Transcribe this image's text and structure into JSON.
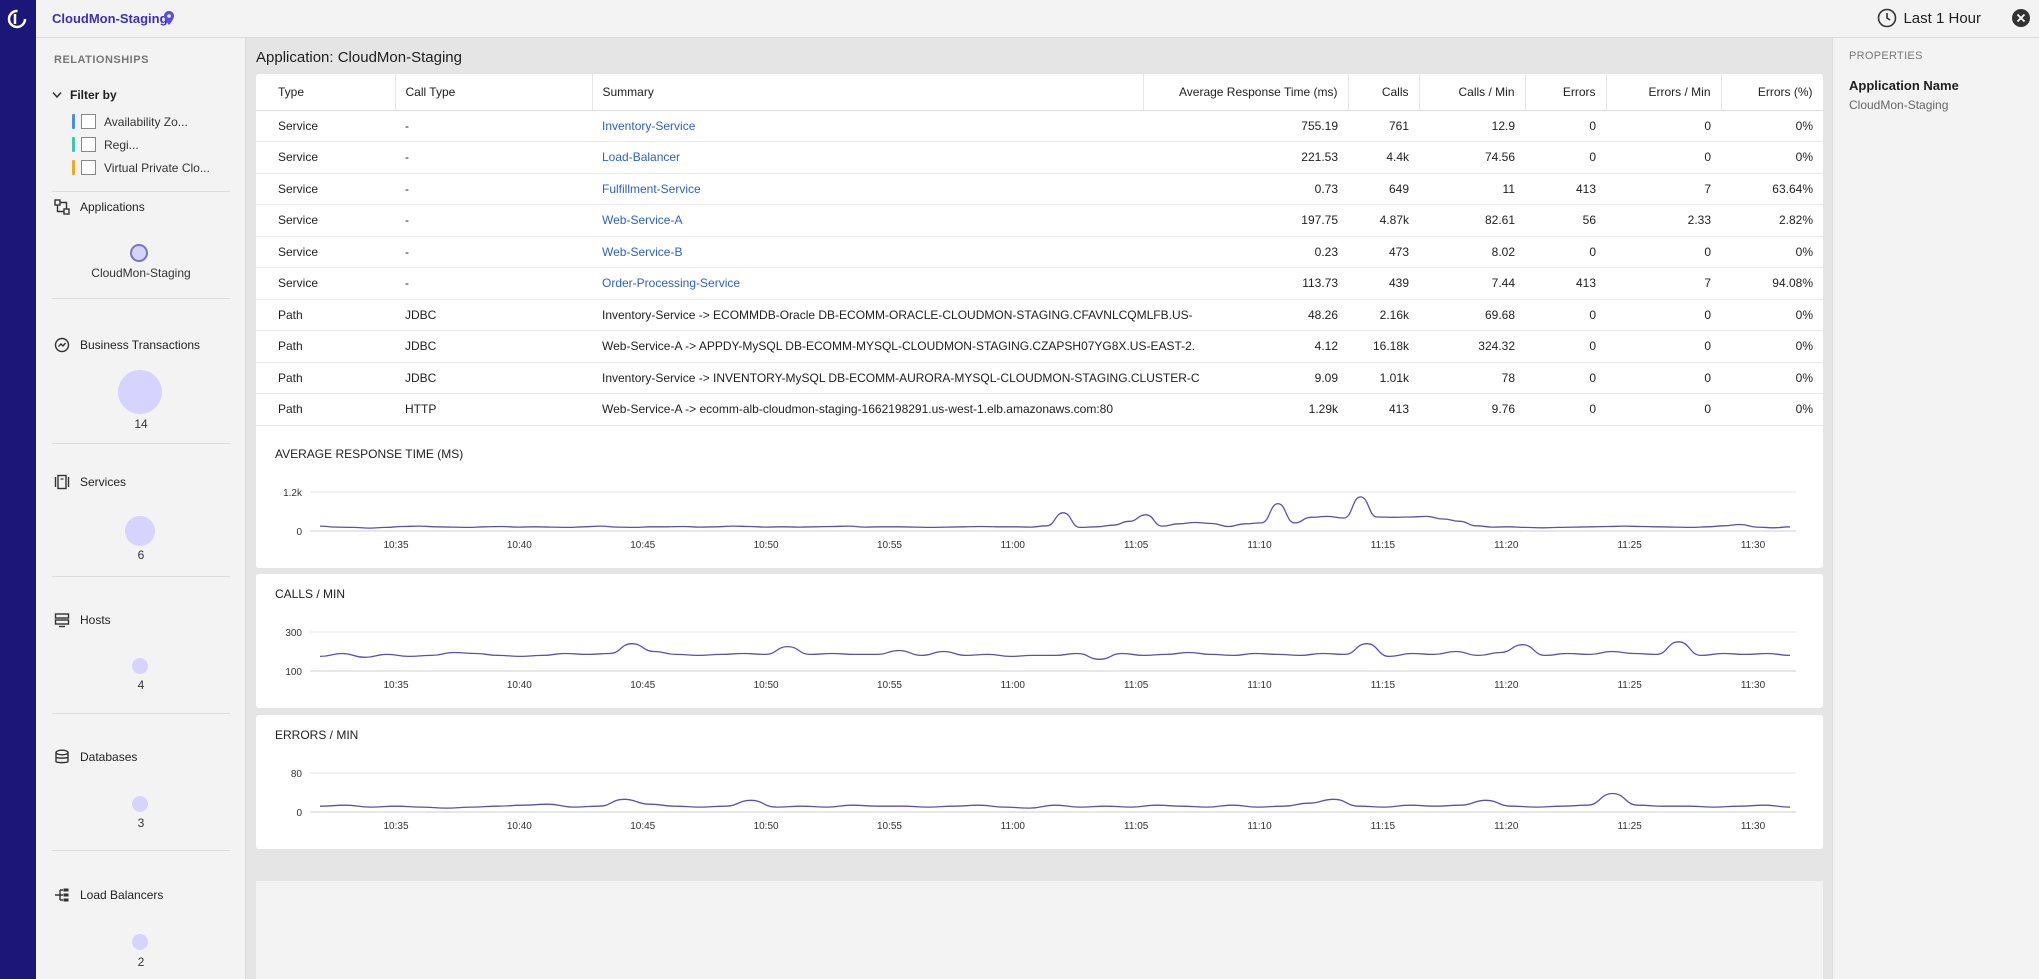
{
  "topbar": {
    "app_name": "CloudMon-Staging",
    "time_range": "Last 1 Hour"
  },
  "sidebar": {
    "title": "RELATIONSHIPS",
    "filter_by": "Filter by",
    "filters": [
      {
        "label": "Availability Zo...",
        "color": "#4a90e2"
      },
      {
        "label": "Regi...",
        "color": "#3cc9a8"
      },
      {
        "label": "Virtual Private Clo...",
        "color": "#f5a623"
      }
    ],
    "sections": [
      {
        "label": "Applications",
        "icon": "applications-icon",
        "bubble_label": "CloudMon-Staging"
      },
      {
        "label": "Business Transactions",
        "icon": "business-transactions-icon",
        "bubble_label": "14"
      },
      {
        "label": "Services",
        "icon": "services-icon",
        "bubble_label": "6"
      },
      {
        "label": "Hosts",
        "icon": "hosts-icon",
        "bubble_label": "4"
      },
      {
        "label": "Databases",
        "icon": "databases-icon",
        "bubble_label": "3"
      },
      {
        "label": "Load Balancers",
        "icon": "load-balancers-icon",
        "bubble_label": "2"
      }
    ]
  },
  "main": {
    "title": "Application: CloudMon-Staging",
    "table": {
      "headers": [
        "Type",
        "Call Type",
        "Summary",
        "Average Response Time (ms)",
        "Calls",
        "Calls / Min",
        "Errors",
        "Errors / Min",
        "Errors (%)"
      ],
      "rows": [
        [
          "Service",
          "-",
          "Inventory-Service",
          "755.19",
          "761",
          "12.9",
          "0",
          "0",
          "0%"
        ],
        [
          "Service",
          "-",
          "Load-Balancer",
          "221.53",
          "4.4k",
          "74.56",
          "0",
          "0",
          "0%"
        ],
        [
          "Service",
          "-",
          "Fulfillment-Service",
          "0.73",
          "649",
          "11",
          "413",
          "7",
          "63.64%"
        ],
        [
          "Service",
          "-",
          "Web-Service-A",
          "197.75",
          "4.87k",
          "82.61",
          "56",
          "2.33",
          "2.82%"
        ],
        [
          "Service",
          "-",
          "Web-Service-B",
          "0.23",
          "473",
          "8.02",
          "0",
          "0",
          "0%"
        ],
        [
          "Service",
          "-",
          "Order-Processing-Service",
          "113.73",
          "439",
          "7.44",
          "413",
          "7",
          "94.08%"
        ],
        [
          "Path",
          "JDBC",
          "Inventory-Service -> ECOMMDB-Oracle DB-ECOMM-ORACLE-CLOUDMON-STAGING.CFAVNLCQMLFB.US-",
          "48.26",
          "2.16k",
          "69.68",
          "0",
          "0",
          "0%"
        ],
        [
          "Path",
          "JDBC",
          "Web-Service-A -> APPDY-MySQL DB-ECOMM-MYSQL-CLOUDMON-STAGING.CZAPSH07YG8X.US-EAST-2.",
          "4.12",
          "16.18k",
          "324.32",
          "0",
          "0",
          "0%"
        ],
        [
          "Path",
          "JDBC",
          "Inventory-Service -> INVENTORY-MySQL DB-ECOMM-AURORA-MYSQL-CLOUDMON-STAGING.CLUSTER-C",
          "9.09",
          "1.01k",
          "78",
          "0",
          "0",
          "0%"
        ],
        [
          "Path",
          "HTTP",
          "Web-Service-A -> ecomm-alb-cloudmon-staging-1662198291.us-west-1.elb.amazonaws.com:80",
          "1.29k",
          "413",
          "9.76",
          "0",
          "0",
          "0%"
        ]
      ]
    }
  },
  "properties": {
    "title": "PROPERTIES",
    "label": "Application Name",
    "value": "CloudMon-Staging"
  },
  "chart_data": [
    {
      "type": "line",
      "title": "AVERAGE RESPONSE TIME (MS)",
      "yticks": [
        "1.2k",
        "0"
      ],
      "ylim": [
        0,
        1200
      ],
      "xticks": [
        "10:35",
        "10:40",
        "10:45",
        "10:50",
        "10:55",
        "11:00",
        "11:05",
        "11:10",
        "11:15",
        "11:20",
        "11:25",
        "11:30"
      ],
      "values": [
        150,
        120,
        110,
        90,
        110,
        140,
        150,
        130,
        120,
        110,
        130,
        140,
        120,
        130,
        120,
        110,
        130,
        150,
        120,
        110,
        130,
        130,
        140,
        120,
        130,
        150,
        140,
        120,
        130,
        120,
        130,
        140,
        150,
        120,
        130,
        130,
        120,
        110,
        120,
        130,
        140,
        130,
        130,
        120,
        160,
        560,
        110,
        130,
        180,
        300,
        500,
        150,
        220,
        260,
        230,
        140,
        220,
        250,
        840,
        250,
        420,
        450,
        400,
        1050,
        430,
        420,
        430,
        450,
        370,
        300,
        160,
        120,
        130,
        110,
        100,
        110,
        120,
        130,
        140,
        150,
        140,
        130,
        120,
        110,
        130,
        160,
        200,
        120,
        100,
        130
      ]
    },
    {
      "type": "line",
      "title": "CALLS / MIN",
      "yticks": [
        "300",
        "100"
      ],
      "ylim": [
        100,
        300
      ],
      "xticks": [
        "10:35",
        "10:40",
        "10:45",
        "10:50",
        "10:55",
        "11:00",
        "11:05",
        "11:10",
        "11:15",
        "11:20",
        "11:25",
        "11:30"
      ],
      "values": [
        175,
        190,
        170,
        185,
        175,
        180,
        195,
        190,
        180,
        175,
        180,
        190,
        185,
        190,
        240,
        200,
        185,
        180,
        185,
        190,
        185,
        225,
        185,
        190,
        185,
        185,
        205,
        180,
        200,
        180,
        185,
        175,
        180,
        180,
        190,
        160,
        190,
        180,
        185,
        195,
        185,
        180,
        190,
        185,
        180,
        190,
        185,
        240,
        175,
        190,
        185,
        200,
        180,
        195,
        235,
        180,
        190,
        185,
        200,
        190,
        185,
        250,
        180,
        190,
        185,
        190,
        180
      ]
    },
    {
      "type": "line",
      "title": "ERRORS / MIN",
      "yticks": [
        "80",
        "0"
      ],
      "ylim": [
        0,
        80
      ],
      "xticks": [
        "10:35",
        "10:40",
        "10:45",
        "10:50",
        "10:55",
        "11:00",
        "11:05",
        "11:10",
        "11:15",
        "11:20",
        "11:25",
        "11:30"
      ],
      "values": [
        12,
        14,
        10,
        12,
        10,
        8,
        10,
        12,
        14,
        16,
        10,
        12,
        26,
        16,
        12,
        10,
        12,
        24,
        10,
        12,
        10,
        14,
        12,
        12,
        10,
        12,
        14,
        10,
        8,
        14,
        10,
        12,
        10,
        14,
        12,
        10,
        14,
        10,
        12,
        18,
        26,
        12,
        10,
        14,
        12,
        14,
        24,
        12,
        10,
        12,
        14,
        38,
        14,
        12,
        12,
        10,
        12,
        14,
        10
      ]
    }
  ]
}
